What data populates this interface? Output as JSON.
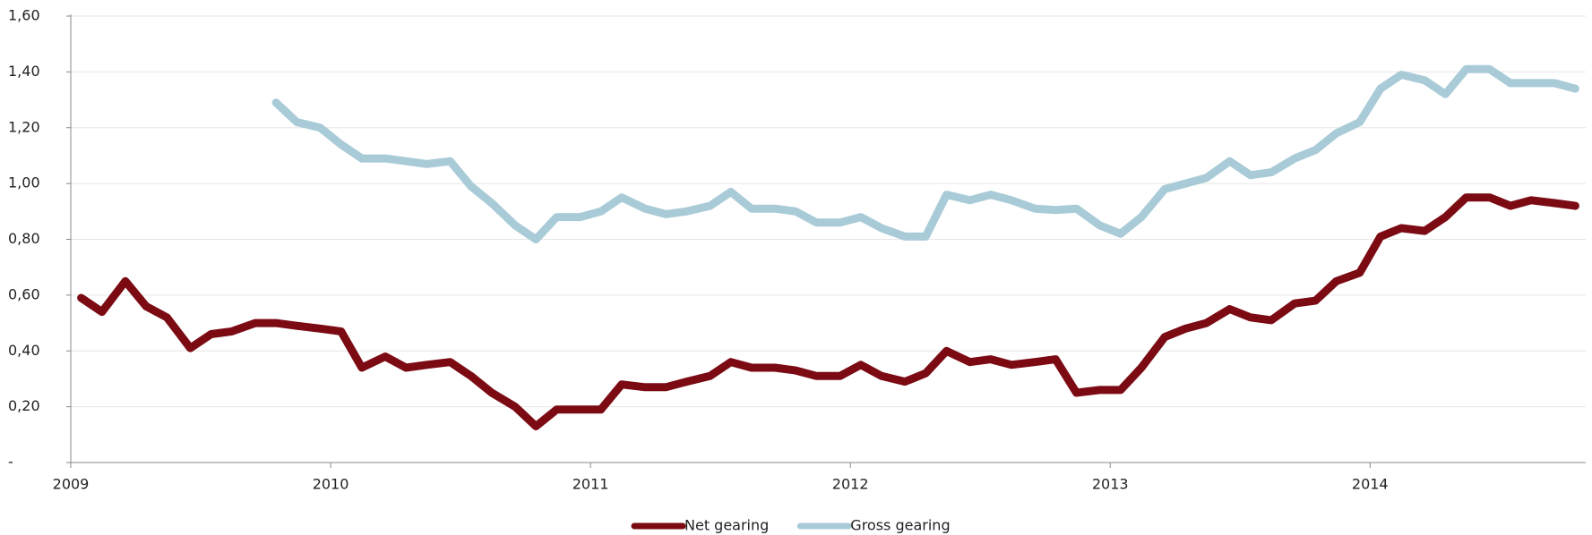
{
  "chart_data": {
    "type": "line",
    "x": [
      2009.04,
      2009.12,
      2009.21,
      2009.29,
      2009.37,
      2009.46,
      2009.54,
      2009.62,
      2009.71,
      2009.79,
      2009.87,
      2009.96,
      2010.04,
      2010.12,
      2010.21,
      2010.29,
      2010.37,
      2010.46,
      2010.54,
      2010.62,
      2010.71,
      2010.79,
      2010.87,
      2010.96,
      2011.04,
      2011.12,
      2011.21,
      2011.29,
      2011.37,
      2011.46,
      2011.54,
      2011.62,
      2011.71,
      2011.79,
      2011.87,
      2011.96,
      2012.04,
      2012.12,
      2012.21,
      2012.29,
      2012.37,
      2012.46,
      2012.54,
      2012.62,
      2012.71,
      2012.79,
      2012.87,
      2012.96,
      2013.04,
      2013.12,
      2013.21,
      2013.29,
      2013.37,
      2013.46,
      2013.54,
      2013.62,
      2013.71,
      2013.79,
      2013.87,
      2013.96,
      2014.04,
      2014.12,
      2014.21,
      2014.29,
      2014.37,
      2014.46,
      2014.54,
      2014.62,
      2014.71,
      2014.79
    ],
    "series": [
      {
        "name": "Net gearing",
        "color": "#7b0a13",
        "values": [
          0.59,
          0.54,
          0.65,
          0.56,
          0.52,
          0.41,
          0.46,
          0.47,
          0.5,
          0.5,
          0.49,
          0.48,
          0.47,
          0.34,
          0.38,
          0.34,
          0.35,
          0.36,
          0.31,
          0.25,
          0.2,
          0.13,
          0.19,
          0.19,
          0.19,
          0.28,
          0.27,
          0.27,
          0.29,
          0.31,
          0.36,
          0.34,
          0.34,
          0.33,
          0.31,
          0.31,
          0.35,
          0.31,
          0.29,
          0.32,
          0.4,
          0.36,
          0.37,
          0.35,
          0.36,
          0.37,
          0.25,
          0.26,
          0.26,
          0.34,
          0.45,
          0.48,
          0.5,
          0.55,
          0.52,
          0.51,
          0.57,
          0.58,
          0.65,
          0.68,
          0.81,
          0.84,
          0.83,
          0.88,
          0.95,
          0.95,
          0.92,
          0.94,
          0.93,
          0.92
        ]
      },
      {
        "name": "Gross gearing",
        "color": "#a9cbd8",
        "values": [
          null,
          null,
          null,
          null,
          null,
          null,
          null,
          null,
          null,
          1.29,
          1.22,
          1.2,
          1.14,
          1.09,
          1.09,
          1.08,
          1.07,
          1.08,
          0.99,
          0.93,
          0.85,
          0.8,
          0.88,
          0.88,
          0.9,
          0.95,
          0.91,
          0.89,
          0.9,
          0.92,
          0.97,
          0.91,
          0.91,
          0.9,
          0.86,
          0.86,
          0.88,
          0.84,
          0.81,
          0.81,
          0.96,
          0.94,
          0.96,
          0.94,
          0.91,
          0.905,
          0.91,
          0.85,
          0.82,
          0.88,
          0.98,
          1.0,
          1.02,
          1.08,
          1.03,
          1.04,
          1.09,
          1.12,
          1.18,
          1.22,
          1.34,
          1.39,
          1.37,
          1.32,
          1.41,
          1.41,
          1.36,
          1.36,
          1.36,
          1.34
        ]
      }
    ],
    "xlim": [
      2009,
      2014.83
    ],
    "xticks": [
      2009,
      2010,
      2011,
      2012,
      2013,
      2014
    ],
    "ylim": [
      0,
      1.6
    ],
    "yticks": [
      {
        "value": 0,
        "label": "-"
      },
      {
        "value": 0.2,
        "label": "0,20"
      },
      {
        "value": 0.4,
        "label": "0,40"
      },
      {
        "value": 0.6,
        "label": "0,60"
      },
      {
        "value": 0.8,
        "label": "0,80"
      },
      {
        "value": 1.0,
        "label": "1,00"
      },
      {
        "value": 1.2,
        "label": "1,20"
      },
      {
        "value": 1.4,
        "label": "1,40"
      },
      {
        "value": 1.6,
        "label": "1,60"
      }
    ],
    "grid": true,
    "legend": "bottom"
  }
}
